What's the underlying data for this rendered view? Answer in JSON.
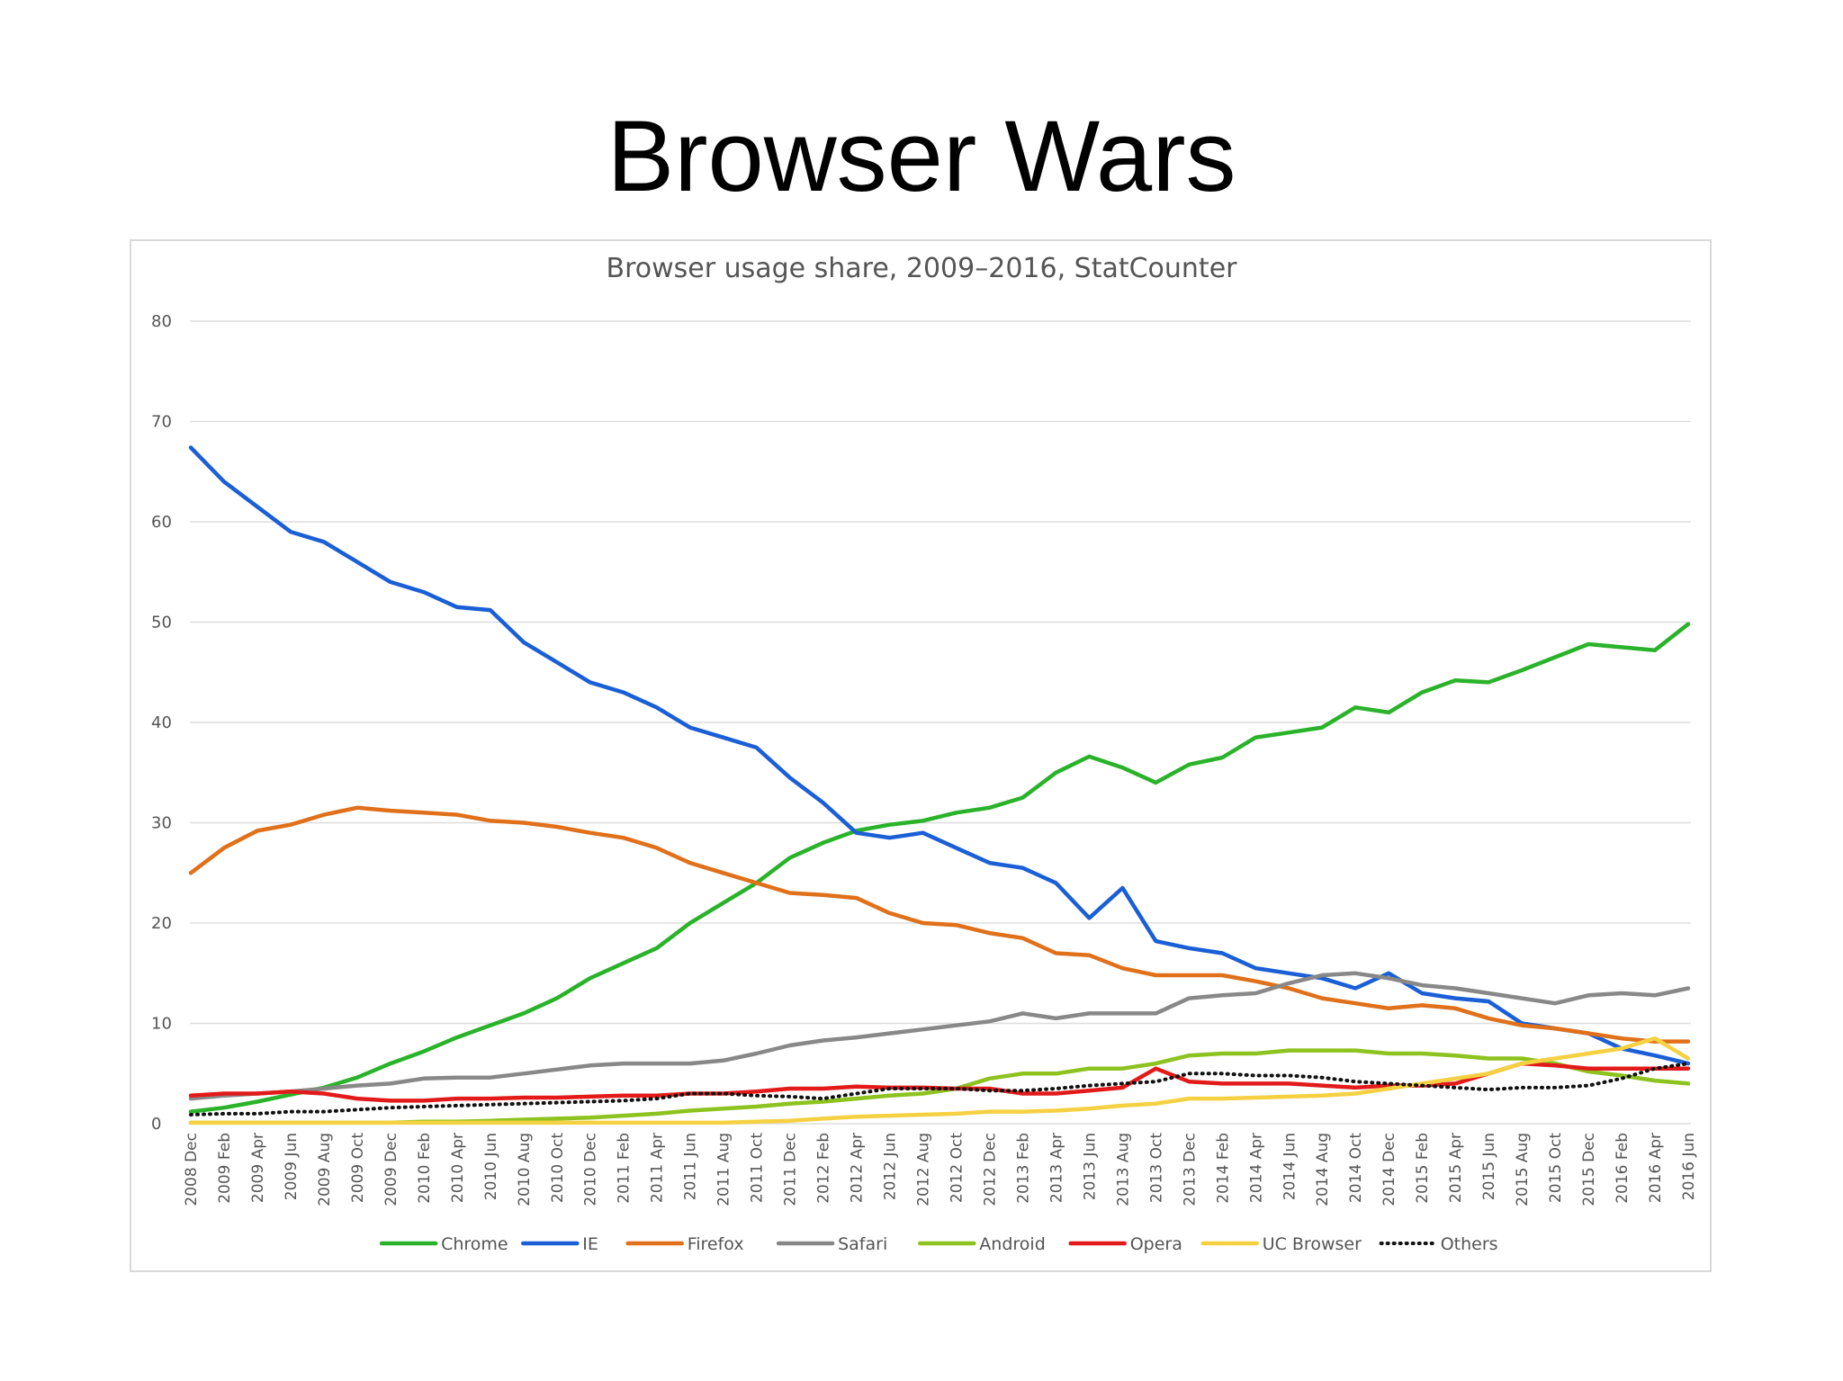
{
  "slide": {
    "title": "Browser Wars"
  },
  "chart_data": {
    "type": "line",
    "title": "Browser usage share, 2009–2016, StatCounter",
    "xlabel": "",
    "ylabel": "",
    "ylim": [
      0,
      80
    ],
    "yticks": [
      0,
      10,
      20,
      30,
      40,
      50,
      60,
      70,
      80
    ],
    "grid": true,
    "legend_position": "bottom",
    "x_tick_labels": [
      "2008 Dec",
      "2009 Feb",
      "2009 Apr",
      "2009 Jun",
      "2009 Aug",
      "2009 Oct",
      "2009 Dec",
      "2010 Feb",
      "2010 Apr",
      "2010 Jun",
      "2010 Aug",
      "2010 Oct",
      "2010 Dec",
      "2011 Feb",
      "2011 Apr",
      "2011 Jun",
      "2011 Aug",
      "2011 Oct",
      "2011 Dec",
      "2012 Feb",
      "2012 Apr",
      "2012 Jun",
      "2012 Aug",
      "2012 Oct",
      "2012 Dec",
      "2013 Feb",
      "2013 Apr",
      "2013 Jun",
      "2013 Aug",
      "2013 Oct",
      "2013 Dec",
      "2014 Feb",
      "2014 Apr",
      "2014 Jun",
      "2014 Aug",
      "2014 Oct",
      "2014 Dec",
      "2015 Feb",
      "2015 Apr",
      "2015 Jun",
      "2015 Aug",
      "2015 Oct",
      "2015 Dec",
      "2016 Feb",
      "2016 Apr",
      "2016 Jun"
    ],
    "series": [
      {
        "name": "Chrome",
        "color": "#2ab32a",
        "dash": "solid",
        "values": [
          1.2,
          1.6,
          2.2,
          2.9,
          3.6,
          4.6,
          6.0,
          7.2,
          8.6,
          9.8,
          11.0,
          12.5,
          14.5,
          16.0,
          17.5,
          20.0,
          22.0,
          24.0,
          26.5,
          28.0,
          29.2,
          29.8,
          30.2,
          31.0,
          31.5,
          32.5,
          35.0,
          36.6,
          35.5,
          34.0,
          35.8,
          36.5,
          38.5,
          39.0,
          39.5,
          41.5,
          41.0,
          43.0,
          44.2,
          44.0,
          45.2,
          46.5,
          47.8,
          47.5,
          47.2,
          49.8
        ]
      },
      {
        "name": "IE",
        "color": "#1a5fd6",
        "dash": "solid",
        "values": [
          67.4,
          64.0,
          61.5,
          59.0,
          58.0,
          56.0,
          54.0,
          53.0,
          51.5,
          51.2,
          48.0,
          46.0,
          44.0,
          43.0,
          41.5,
          39.5,
          38.5,
          37.5,
          34.5,
          32.0,
          29.0,
          28.5,
          29.0,
          27.5,
          26.0,
          25.5,
          24.0,
          20.5,
          23.5,
          18.2,
          17.5,
          17.0,
          15.5,
          15.0,
          14.5,
          13.5,
          15.0,
          13.0,
          12.5,
          12.2,
          10.0,
          9.5,
          9.0,
          7.5,
          6.8,
          6.0
        ]
      },
      {
        "name": "Firefox",
        "color": "#e0701a",
        "dash": "solid",
        "values": [
          25.0,
          27.5,
          29.2,
          29.8,
          30.8,
          31.5,
          31.2,
          31.0,
          30.8,
          30.2,
          30.0,
          29.6,
          29.0,
          28.5,
          27.5,
          26.0,
          25.0,
          24.0,
          23.0,
          22.8,
          22.5,
          21.0,
          20.0,
          19.8,
          19.0,
          18.5,
          17.0,
          16.8,
          15.5,
          14.8,
          14.8,
          14.8,
          14.2,
          13.5,
          12.5,
          12.0,
          11.5,
          11.8,
          11.5,
          10.5,
          9.8,
          9.5,
          9.0,
          8.5,
          8.2,
          8.2
        ]
      },
      {
        "name": "Safari",
        "color": "#888888",
        "dash": "solid",
        "values": [
          2.5,
          2.8,
          3.0,
          3.2,
          3.5,
          3.8,
          4.0,
          4.5,
          4.6,
          4.6,
          5.0,
          5.4,
          5.8,
          6.0,
          6.0,
          6.0,
          6.3,
          7.0,
          7.8,
          8.3,
          8.6,
          9.0,
          9.4,
          9.8,
          10.2,
          11.0,
          10.5,
          11.0,
          11.0,
          11.0,
          12.5,
          12.8,
          13.0,
          14.0,
          14.8,
          15.0,
          14.5,
          13.8,
          13.5,
          13.0,
          12.5,
          12.0,
          12.8,
          13.0,
          12.8,
          13.5
        ]
      },
      {
        "name": "Android",
        "color": "#8dc21f",
        "dash": "solid",
        "values": [
          0.1,
          0.1,
          0.1,
          0.1,
          0.1,
          0.1,
          0.1,
          0.2,
          0.2,
          0.3,
          0.4,
          0.5,
          0.6,
          0.8,
          1.0,
          1.3,
          1.5,
          1.7,
          2.0,
          2.2,
          2.5,
          2.8,
          3.0,
          3.5,
          4.5,
          5.0,
          5.0,
          5.5,
          5.5,
          6.0,
          6.8,
          7.0,
          7.0,
          7.3,
          7.3,
          7.3,
          7.0,
          7.0,
          6.8,
          6.5,
          6.5,
          6.0,
          5.2,
          4.8,
          4.3,
          4.0
        ]
      },
      {
        "name": "Opera",
        "color": "#e31a1a",
        "dash": "solid",
        "values": [
          2.8,
          3.0,
          3.0,
          3.2,
          3.0,
          2.5,
          2.3,
          2.3,
          2.5,
          2.5,
          2.6,
          2.6,
          2.7,
          2.8,
          2.8,
          3.0,
          3.0,
          3.2,
          3.5,
          3.5,
          3.7,
          3.6,
          3.6,
          3.5,
          3.5,
          3.0,
          3.0,
          3.3,
          3.6,
          5.5,
          4.2,
          4.0,
          4.0,
          4.0,
          3.8,
          3.6,
          3.8,
          3.8,
          4.0,
          5.0,
          6.0,
          5.8,
          5.5,
          5.5,
          5.5,
          5.5
        ]
      },
      {
        "name": "UC Browser",
        "color": "#f5d142",
        "dash": "solid",
        "values": [
          0.1,
          0.1,
          0.1,
          0.1,
          0.1,
          0.1,
          0.1,
          0.1,
          0.1,
          0.1,
          0.1,
          0.1,
          0.1,
          0.1,
          0.1,
          0.1,
          0.1,
          0.2,
          0.3,
          0.5,
          0.7,
          0.8,
          0.9,
          1.0,
          1.2,
          1.2,
          1.3,
          1.5,
          1.8,
          2.0,
          2.5,
          2.5,
          2.6,
          2.7,
          2.8,
          3.0,
          3.5,
          4.0,
          4.5,
          5.0,
          6.0,
          6.5,
          7.0,
          7.5,
          8.5,
          6.5
        ]
      },
      {
        "name": "Others",
        "color": "#111111",
        "dash": "dotted",
        "values": [
          0.9,
          1.0,
          1.0,
          1.2,
          1.2,
          1.4,
          1.6,
          1.7,
          1.8,
          1.9,
          2.0,
          2.1,
          2.2,
          2.3,
          2.5,
          3.0,
          3.0,
          2.8,
          2.7,
          2.5,
          3.0,
          3.5,
          3.5,
          3.5,
          3.3,
          3.3,
          3.5,
          3.8,
          4.0,
          4.2,
          5.0,
          5.0,
          4.8,
          4.8,
          4.6,
          4.2,
          4.0,
          3.8,
          3.6,
          3.4,
          3.6,
          3.6,
          3.8,
          4.5,
          5.5,
          6.0
        ]
      }
    ]
  }
}
